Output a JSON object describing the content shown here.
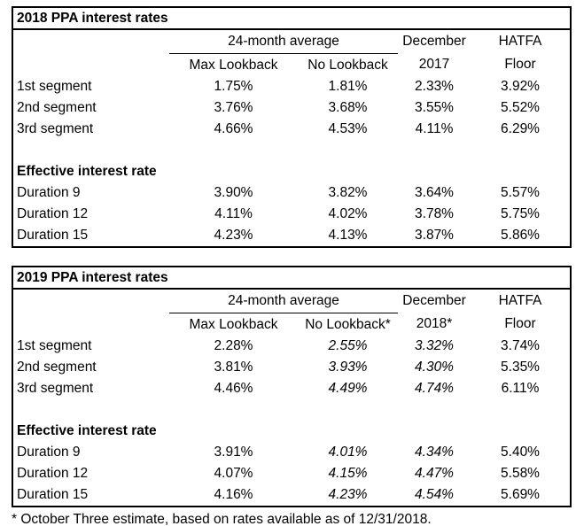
{
  "styles": {
    "border_color": "#000000",
    "text_color": "#000000",
    "background": "#ffffff"
  },
  "footnote": "* October Three estimate, based on rates available as of 12/31/2018.",
  "tables": [
    {
      "title": "2018 PPA interest rates",
      "group_header": "24-month average",
      "sub_headers": [
        "Max Lookback",
        "No Lookback"
      ],
      "col_december": [
        "December",
        "2017"
      ],
      "col_hatfa": [
        "HATFA",
        "Floor"
      ],
      "segment_rows": [
        {
          "label": "1st segment",
          "values": [
            "1.75%",
            "1.81%",
            "2.33%",
            "3.92%"
          ]
        },
        {
          "label": "2nd segment",
          "values": [
            "3.76%",
            "3.68%",
            "3.55%",
            "5.52%"
          ]
        },
        {
          "label": "3rd segment",
          "values": [
            "4.66%",
            "4.53%",
            "4.11%",
            "6.29%"
          ]
        }
      ],
      "section_label": "Effective interest rate",
      "duration_rows": [
        {
          "label": "Duration 9",
          "values": [
            "3.90%",
            "3.82%",
            "3.64%",
            "5.57%"
          ]
        },
        {
          "label": "Duration 12",
          "values": [
            "4.11%",
            "4.02%",
            "3.78%",
            "5.75%"
          ]
        },
        {
          "label": "Duration 15",
          "values": [
            "4.23%",
            "4.13%",
            "3.87%",
            "5.86%"
          ]
        }
      ]
    },
    {
      "title": "2019 PPA interest rates",
      "group_header": "24-month average",
      "sub_headers": [
        "Max Lookback",
        "No Lookback*"
      ],
      "col_december": [
        "December",
        "2018*"
      ],
      "col_hatfa": [
        "HATFA",
        "Floor"
      ],
      "segment_rows": [
        {
          "label": "1st segment",
          "values": [
            "2.28%",
            "2.55%",
            "3.32%",
            "3.74%"
          ]
        },
        {
          "label": "2nd segment",
          "values": [
            "3.81%",
            "3.93%",
            "4.30%",
            "5.35%"
          ]
        },
        {
          "label": "3rd segment",
          "values": [
            "4.46%",
            "4.49%",
            "4.74%",
            "6.11%"
          ]
        }
      ],
      "section_label": "Effective interest rate",
      "duration_rows": [
        {
          "label": "Duration 9",
          "values": [
            "3.91%",
            "4.01%",
            "4.34%",
            "5.40%"
          ]
        },
        {
          "label": "Duration 12",
          "values": [
            "4.07%",
            "4.15%",
            "4.47%",
            "5.58%"
          ]
        },
        {
          "label": "Duration 15",
          "values": [
            "4.16%",
            "4.23%",
            "4.54%",
            "5.69%"
          ]
        }
      ]
    }
  ]
}
